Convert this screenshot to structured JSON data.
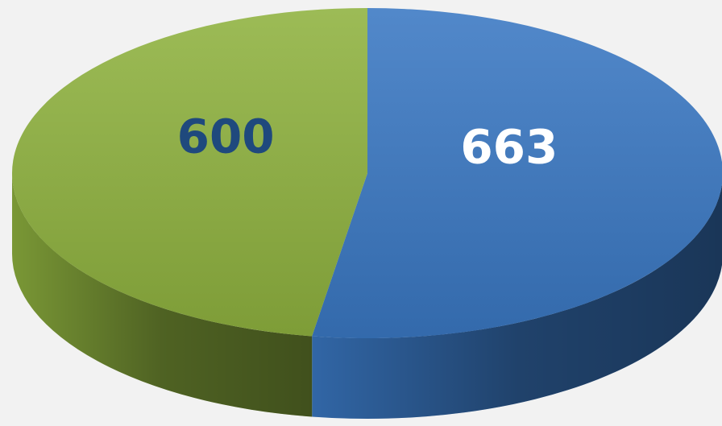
{
  "chart_data": {
    "type": "pie",
    "values": [
      663,
      600
    ],
    "colors": [
      "#3a78c3",
      "#8fb23f"
    ],
    "label_colors": [
      "#ffffff",
      "#1f497d"
    ]
  }
}
